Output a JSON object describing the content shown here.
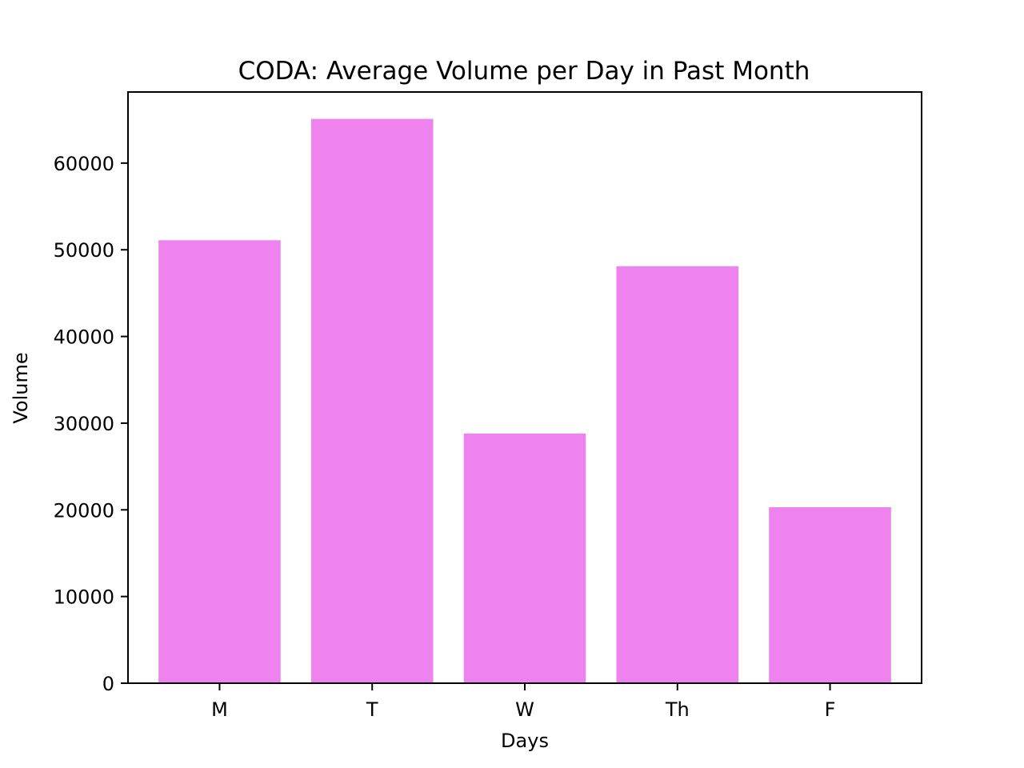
{
  "chart_data": {
    "type": "bar",
    "title": "CODA: Average Volume per Day in Past Month",
    "xlabel": "Days",
    "ylabel": "Volume",
    "categories": [
      "M",
      "T",
      "W",
      "Th",
      "F"
    ],
    "values": [
      51100,
      65100,
      28800,
      48100,
      20300
    ],
    "ylim": [
      0,
      68200
    ],
    "yticks": [
      0,
      10000,
      20000,
      30000,
      40000,
      50000,
      60000
    ],
    "ytick_labels": [
      "0",
      "10000",
      "20000",
      "30000",
      "40000",
      "50000",
      "60000"
    ],
    "bar_color": "#ee82ee",
    "grid": false,
    "legend": "none"
  }
}
